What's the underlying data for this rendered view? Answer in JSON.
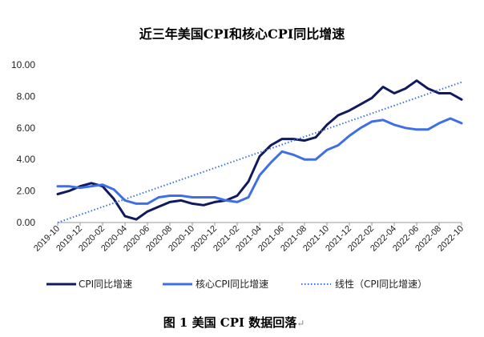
{
  "chart_data": {
    "type": "line",
    "title": "近三年美国CPI和核心CPI同比增速",
    "caption": "图 1 美国 CPI 数据回落",
    "caption_mark": "↵",
    "xlabel": "",
    "ylabel": "",
    "ylim": [
      0,
      10
    ],
    "yticks": [
      "0.00",
      "2.00",
      "4.00",
      "6.00",
      "8.00",
      "10.00"
    ],
    "x": [
      "2019-10",
      "2019-11",
      "2019-12",
      "2020-01",
      "2020-02",
      "2020-03",
      "2020-04",
      "2020-05",
      "2020-06",
      "2020-07",
      "2020-08",
      "2020-09",
      "2020-10",
      "2020-11",
      "2020-12",
      "2021-01",
      "2021-02",
      "2021-03",
      "2021-04",
      "2021-05",
      "2021-06",
      "2021-07",
      "2021-08",
      "2021-09",
      "2021-10",
      "2021-11",
      "2021-12",
      "2022-01",
      "2022-02",
      "2022-03",
      "2022-04",
      "2022-05",
      "2022-06",
      "2022-07",
      "2022-08",
      "2022-09",
      "2022-10"
    ],
    "xtick_labels": [
      "2019-10",
      "2019-12",
      "2020-02",
      "2020-04",
      "2020-06",
      "2020-08",
      "2020-10",
      "2020-12",
      "2021-02",
      "2021-04",
      "2021-06",
      "2021-08",
      "2021-10",
      "2021-12",
      "2022-02",
      "2022-04",
      "2022-06",
      "2022-08",
      "2022-10"
    ],
    "grid": false,
    "legend_position": "bottom",
    "series": [
      {
        "name": "CPI同比增速",
        "color": "#101a5c",
        "style": "solid",
        "values": [
          1.8,
          2.0,
          2.3,
          2.5,
          2.3,
          1.5,
          0.4,
          0.2,
          0.7,
          1.0,
          1.3,
          1.4,
          1.2,
          1.1,
          1.3,
          1.4,
          1.7,
          2.6,
          4.2,
          4.9,
          5.3,
          5.3,
          5.2,
          5.4,
          6.2,
          6.8,
          7.1,
          7.5,
          7.9,
          8.6,
          8.2,
          8.5,
          9.0,
          8.5,
          8.2,
          8.2,
          7.8
        ]
      },
      {
        "name": "核心CPI同比增速",
        "color": "#3f6fe8",
        "style": "solid",
        "values": [
          2.3,
          2.3,
          2.2,
          2.3,
          2.4,
          2.1,
          1.4,
          1.2,
          1.2,
          1.6,
          1.7,
          1.7,
          1.6,
          1.6,
          1.6,
          1.4,
          1.3,
          1.6,
          3.0,
          3.8,
          4.5,
          4.3,
          4.0,
          4.0,
          4.6,
          4.9,
          5.5,
          6.0,
          6.4,
          6.5,
          6.2,
          6.0,
          5.9,
          5.9,
          6.3,
          6.6,
          6.3
        ]
      },
      {
        "name": "线性（CPI同比增速）",
        "color": "#3f6fe8",
        "style": "dotted",
        "trend": [
          0.0,
          8.9
        ]
      }
    ]
  }
}
